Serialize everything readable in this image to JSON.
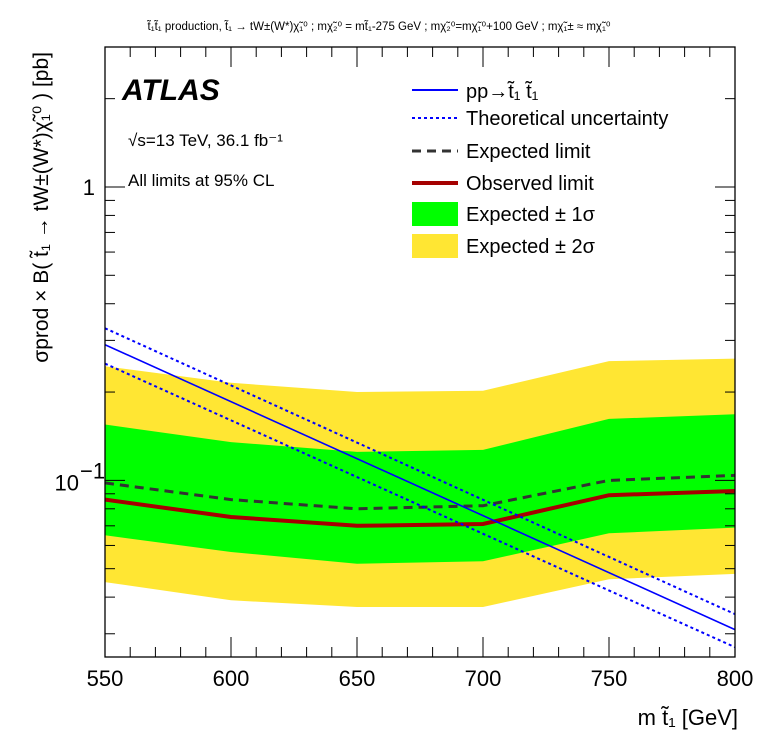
{
  "header": {
    "title": "t̃₁t̃₁ production, t̃₁ → tW±(W*)χ̃₁⁰ ; mχ̃₂⁰ = mt̃₁-275 GeV ; mχ̃₂⁰=mχ̃₁⁰+100 GeV ; mχ̃₁± ≈ mχ̃₁⁰"
  },
  "atlas": {
    "label": "ATLAS",
    "energy_lumi": "√s=13 TeV, 36.1 fb⁻¹",
    "cl_note": "All limits at 95% CL"
  },
  "chart_data": {
    "type": "line",
    "xlabel": "m t̃₁ [GeV]",
    "ylabel": "σprod × B( t̃₁ → tW±(W*)χ̃₁⁰ ) [pb]",
    "xlim": [
      550,
      800
    ],
    "ylim": [
      0.025,
      3.0
    ],
    "ylog": true,
    "x_ticks": [
      "550",
      "600",
      "650",
      "700",
      "750",
      "800"
    ],
    "y_ticks": [
      {
        "value": 0.1,
        "base": "10",
        "exp": "−1"
      },
      {
        "value": 1,
        "text": "1"
      }
    ],
    "x": [
      550,
      600,
      650,
      700,
      750,
      800
    ],
    "series": [
      {
        "name": "pp→t̃₁ t̃₁",
        "style": "solid-thin",
        "color": "#0000ff",
        "x": [
          550,
          800
        ],
        "values": [
          0.29,
          0.031
        ]
      },
      {
        "name": "Theoretical uncertainty",
        "style": "dotted",
        "color": "#0000ff",
        "bands": [
          {
            "x": [
              550,
              800
            ],
            "values": [
              0.33,
              0.035
            ]
          },
          {
            "x": [
              550,
              800
            ],
            "values": [
              0.25,
              0.027
            ]
          }
        ]
      },
      {
        "name": "Expected limit",
        "style": "dashed",
        "color": "#333333",
        "values": [
          0.098,
          0.086,
          0.08,
          0.082,
          0.1,
          0.104
        ]
      },
      {
        "name": "Observed limit",
        "style": "solid-thick",
        "color": "#a50000",
        "values": [
          0.086,
          0.075,
          0.07,
          0.071,
          0.089,
          0.092
        ]
      },
      {
        "name": "Expected ± 1σ",
        "style": "band",
        "color": "#00ff00",
        "upper": [
          0.155,
          0.135,
          0.125,
          0.127,
          0.162,
          0.168
        ],
        "lower": [
          0.065,
          0.057,
          0.052,
          0.053,
          0.066,
          0.069
        ]
      },
      {
        "name": "Expected ± 2σ",
        "style": "band",
        "color": "#ffe633",
        "upper": [
          0.245,
          0.215,
          0.2,
          0.202,
          0.255,
          0.26
        ],
        "lower": [
          0.045,
          0.039,
          0.037,
          0.037,
          0.046,
          0.048
        ]
      }
    ],
    "legend_position": "top-right",
    "grid": false
  }
}
